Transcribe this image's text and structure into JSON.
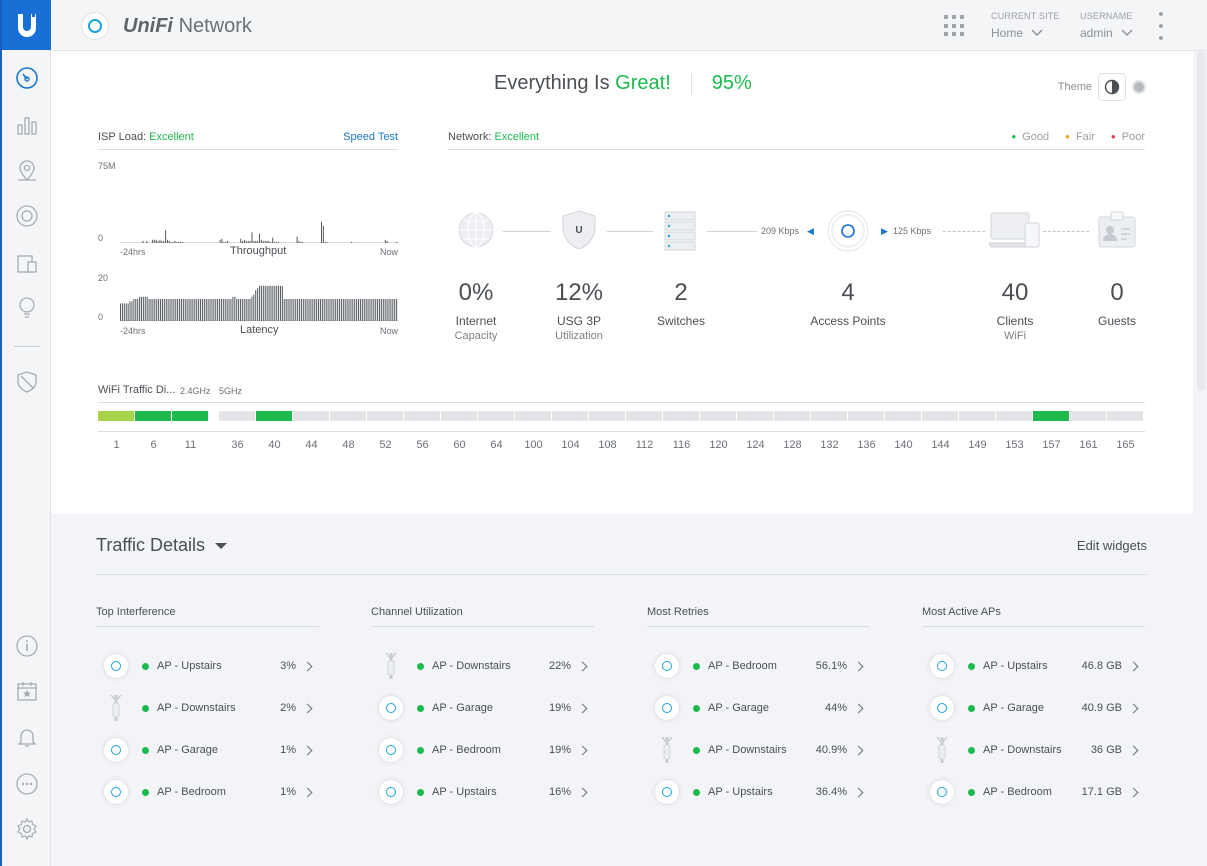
{
  "app": {
    "brand_prefix": "UniFi",
    "brand_name": "Network"
  },
  "header": {
    "site_label": "CURRENT SITE",
    "site_value": "Home",
    "user_label": "USERNAME",
    "user_value": "admin"
  },
  "dashboard": {
    "headline_prefix": "Everything Is",
    "headline_status": "Great!",
    "score": "95%",
    "theme_label": "Theme"
  },
  "isp": {
    "label": "ISP Load:",
    "status": "Excellent",
    "speed_test": "Speed Test",
    "throughput": {
      "ymax": "75M",
      "ymin": "0",
      "start": "-24hrs",
      "end": "Now",
      "title": "Throughput",
      "values": [
        0,
        0,
        0,
        0,
        0,
        0,
        0,
        0,
        0,
        0,
        0,
        0,
        2,
        0,
        2,
        0,
        0,
        3,
        3,
        3,
        2,
        3,
        2,
        2,
        12,
        3,
        2,
        1,
        1,
        2,
        1,
        1,
        1,
        1,
        0,
        0,
        0,
        0,
        0,
        0,
        0,
        0,
        0,
        0,
        0,
        0,
        0,
        0,
        0,
        0,
        0,
        0,
        0,
        3,
        4,
        1,
        1,
        2,
        0,
        0,
        0,
        0,
        0,
        0,
        4,
        2,
        3,
        2,
        2,
        2,
        10,
        2,
        2,
        2,
        9,
        3,
        2,
        2,
        2,
        2,
        1,
        5,
        1,
        1,
        1,
        0,
        0,
        0,
        0,
        0,
        0,
        0,
        0,
        0,
        6,
        2,
        1,
        1,
        0,
        0,
        0,
        0,
        0,
        0,
        0,
        0,
        0,
        20,
        16,
        1,
        1,
        0,
        0,
        0,
        0,
        0,
        0,
        0,
        0,
        0,
        0,
        0,
        0,
        1,
        0,
        0,
        0,
        0,
        0,
        0,
        0,
        0,
        0,
        0,
        0,
        0,
        0,
        0,
        0,
        0,
        0,
        3,
        2,
        0,
        0,
        0,
        0,
        1
      ]
    },
    "latency": {
      "ymax": "20",
      "ymin": "0",
      "start": "-24hrs",
      "end": "Now",
      "title": "Latency",
      "values": [
        8,
        8,
        8,
        8,
        8,
        9,
        9,
        10,
        10,
        10,
        11,
        11,
        11,
        11,
        11,
        10,
        10,
        10,
        10,
        10,
        10,
        10,
        10,
        10,
        10,
        10,
        10,
        10,
        10,
        10,
        10,
        10,
        10,
        10,
        10,
        10,
        10,
        10,
        10,
        10,
        10,
        10,
        10,
        10,
        10,
        10,
        10,
        10,
        10,
        10,
        10,
        10,
        10,
        10,
        10,
        10,
        10,
        10,
        10,
        11,
        11,
        10,
        10,
        10,
        10,
        10,
        10,
        10,
        10,
        11,
        12,
        14,
        15,
        16,
        16,
        16,
        16,
        16,
        16,
        16,
        16,
        16,
        16,
        16,
        16,
        16,
        10,
        10,
        10,
        10,
        10,
        10,
        10,
        10,
        10,
        10,
        10,
        10,
        10,
        10,
        10,
        10,
        10,
        10,
        10,
        10,
        10,
        10,
        10,
        10,
        10,
        10,
        10,
        10,
        10,
        10,
        10,
        10,
        10,
        10,
        10,
        10,
        10,
        10,
        10,
        10,
        10,
        10,
        10,
        10,
        10,
        10,
        10,
        10,
        10,
        10,
        10,
        10,
        10,
        10,
        10,
        10,
        10,
        10,
        10,
        10
      ]
    }
  },
  "network": {
    "label": "Network:",
    "status": "Excellent",
    "legend": [
      "Good",
      "Fair",
      "Poor"
    ],
    "rate_up": "209 Kbps",
    "rate_down": "125 Kbps",
    "devices": [
      {
        "num": "0%",
        "label": "Internet",
        "sub": "Capacity",
        "icon": "globe-icon"
      },
      {
        "num": "12%",
        "label": "USG 3P",
        "sub": "Utilization",
        "icon": "shield-icon"
      },
      {
        "num": "2",
        "label": "Switches",
        "sub": "",
        "icon": "switch-icon"
      },
      {
        "num": "4",
        "label": "Access Points",
        "sub": "",
        "icon": "access-point-icon"
      },
      {
        "num": "40",
        "label": "Clients",
        "sub": "WiFi",
        "icon": "devices-icon"
      },
      {
        "num": "0",
        "label": "Guests",
        "sub": "",
        "icon": "guest-badge-icon"
      }
    ]
  },
  "wifi_traffic": {
    "label": "WiFi Traffic Di...",
    "band_24": "2.4GHz",
    "band_5": "5GHz",
    "channels_24": [
      {
        "ch": "1",
        "level": "fair"
      },
      {
        "ch": "6",
        "level": "good"
      },
      {
        "ch": "11",
        "level": "good"
      }
    ],
    "channels_5": [
      {
        "ch": "36",
        "level": "none"
      },
      {
        "ch": "40",
        "level": "good"
      },
      {
        "ch": "44",
        "level": "none"
      },
      {
        "ch": "48",
        "level": "none"
      },
      {
        "ch": "52",
        "level": "none"
      },
      {
        "ch": "56",
        "level": "none"
      },
      {
        "ch": "60",
        "level": "none"
      },
      {
        "ch": "64",
        "level": "none"
      },
      {
        "ch": "100",
        "level": "none"
      },
      {
        "ch": "104",
        "level": "none"
      },
      {
        "ch": "108",
        "level": "none"
      },
      {
        "ch": "112",
        "level": "none"
      },
      {
        "ch": "116",
        "level": "none"
      },
      {
        "ch": "120",
        "level": "none"
      },
      {
        "ch": "124",
        "level": "none"
      },
      {
        "ch": "128",
        "level": "none"
      },
      {
        "ch": "132",
        "level": "none"
      },
      {
        "ch": "136",
        "level": "none"
      },
      {
        "ch": "140",
        "level": "none"
      },
      {
        "ch": "144",
        "level": "none"
      },
      {
        "ch": "149",
        "level": "none"
      },
      {
        "ch": "153",
        "level": "none"
      },
      {
        "ch": "157",
        "level": "good"
      },
      {
        "ch": "161",
        "level": "none"
      },
      {
        "ch": "165",
        "level": "none"
      }
    ]
  },
  "traffic_details": {
    "title": "Traffic Details",
    "edit": "Edit widgets",
    "columns": [
      {
        "title": "Top Interference",
        "rows": [
          {
            "name": "AP - Upstairs",
            "value": "3%",
            "type": "ap"
          },
          {
            "name": "AP - Downstairs",
            "value": "2%",
            "type": "mesh"
          },
          {
            "name": "AP - Garage",
            "value": "1%",
            "type": "ap"
          },
          {
            "name": "AP - Bedroom",
            "value": "1%",
            "type": "ap"
          }
        ]
      },
      {
        "title": "Channel Utilization",
        "rows": [
          {
            "name": "AP - Downstairs",
            "value": "22%",
            "type": "mesh"
          },
          {
            "name": "AP - Garage",
            "value": "19%",
            "type": "ap"
          },
          {
            "name": "AP - Bedroom",
            "value": "19%",
            "type": "ap"
          },
          {
            "name": "AP - Upstairs",
            "value": "16%",
            "type": "ap"
          }
        ]
      },
      {
        "title": "Most Retries",
        "rows": [
          {
            "name": "AP - Bedroom",
            "value": "56.1%",
            "type": "ap"
          },
          {
            "name": "AP - Garage",
            "value": "44%",
            "type": "ap"
          },
          {
            "name": "AP - Downstairs",
            "value": "40.9%",
            "type": "mesh"
          },
          {
            "name": "AP - Upstairs",
            "value": "36.4%",
            "type": "ap"
          }
        ]
      },
      {
        "title": "Most Active APs",
        "rows": [
          {
            "name": "AP - Upstairs",
            "value": "46.8 GB",
            "type": "ap"
          },
          {
            "name": "AP - Garage",
            "value": "40.9 GB",
            "type": "ap"
          },
          {
            "name": "AP - Downstairs",
            "value": "36 GB",
            "type": "mesh"
          },
          {
            "name": "AP - Bedroom",
            "value": "17.1 GB",
            "type": "ap"
          }
        ]
      }
    ]
  },
  "colors": {
    "good": "#1cba4e",
    "fair": "#a8d24a",
    "none": "#e2e4e7",
    "accent": "#1a6fd6"
  }
}
